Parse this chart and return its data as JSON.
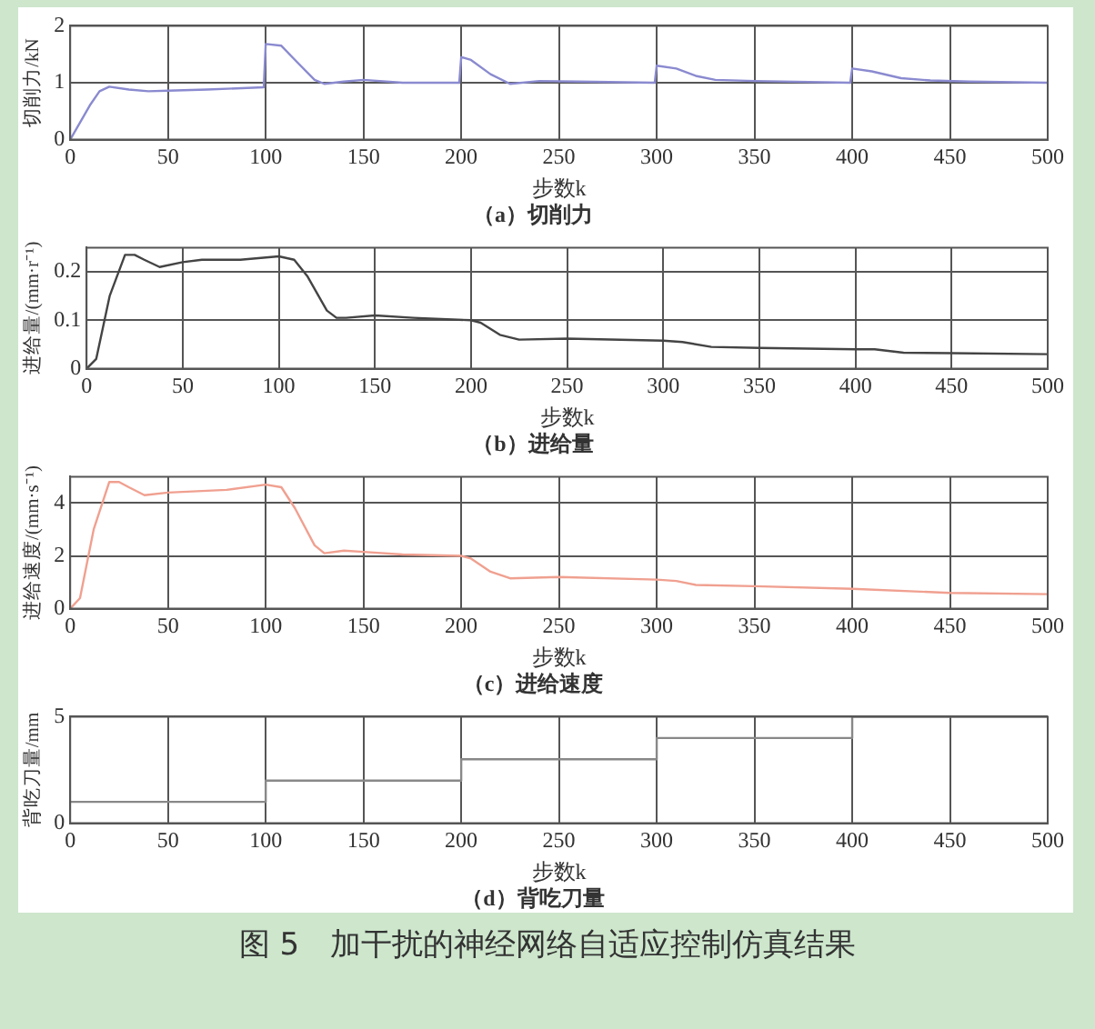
{
  "chart_data": [
    {
      "type": "line",
      "title": "（a）切削力",
      "xlabel": "步数k",
      "ylabel": "切削力/kN",
      "xlim": [
        0,
        500
      ],
      "xticks": [
        0,
        50,
        100,
        150,
        200,
        250,
        300,
        350,
        400,
        450,
        500
      ],
      "ylim": [
        0,
        2
      ],
      "yticks": [
        0,
        1,
        2
      ],
      "grid": true,
      "legend": false,
      "marker": "none",
      "line_style": "solid",
      "series": [
        {
          "color": "#8a8ad0",
          "x": [
            0,
            5,
            10,
            15,
            20,
            30,
            40,
            50,
            70,
            99,
            100,
            108,
            115,
            125,
            130,
            140,
            150,
            170,
            199,
            200,
            205,
            215,
            225,
            240,
            260,
            299,
            300,
            310,
            320,
            330,
            350,
            399,
            400,
            410,
            425,
            440,
            460,
            500
          ],
          "values": [
            0,
            0.3,
            0.6,
            0.85,
            0.93,
            0.88,
            0.85,
            0.86,
            0.88,
            0.92,
            1.68,
            1.65,
            1.4,
            1.05,
            0.98,
            1.02,
            1.05,
            1.0,
            1.0,
            1.45,
            1.4,
            1.15,
            0.98,
            1.03,
            1.02,
            1.0,
            1.3,
            1.25,
            1.12,
            1.05,
            1.03,
            1.0,
            1.25,
            1.2,
            1.08,
            1.04,
            1.02,
            1.0
          ]
        }
      ]
    },
    {
      "type": "line",
      "title": "（b）进给量",
      "xlabel": "步数k",
      "ylabel": "进给量/(mm·r⁻¹)",
      "xlim": [
        0,
        500
      ],
      "xticks": [
        0,
        50,
        100,
        150,
        200,
        250,
        300,
        350,
        400,
        450,
        500
      ],
      "ylim": [
        0,
        0.25
      ],
      "yticks": [
        0,
        0.1,
        0.2
      ],
      "grid": true,
      "legend": false,
      "marker": "none",
      "line_style": "solid",
      "series": [
        {
          "color": "#444444",
          "x": [
            0,
            5,
            12,
            20,
            25,
            30,
            38,
            50,
            60,
            80,
            100,
            108,
            115,
            125,
            130,
            135,
            150,
            170,
            200,
            205,
            215,
            225,
            250,
            300,
            310,
            325,
            350,
            400,
            410,
            425,
            450,
            500
          ],
          "values": [
            0,
            0.02,
            0.15,
            0.235,
            0.235,
            0.225,
            0.21,
            0.22,
            0.225,
            0.225,
            0.232,
            0.225,
            0.19,
            0.12,
            0.105,
            0.105,
            0.11,
            0.105,
            0.1,
            0.095,
            0.07,
            0.06,
            0.062,
            0.058,
            0.055,
            0.045,
            0.043,
            0.04,
            0.04,
            0.033,
            0.032,
            0.03
          ]
        }
      ]
    },
    {
      "type": "line",
      "title": "（c）进给速度",
      "xlabel": "步数k",
      "ylabel": "进给速度/(mm·s⁻¹)",
      "xlim": [
        0,
        500
      ],
      "xticks": [
        0,
        50,
        100,
        150,
        200,
        250,
        300,
        350,
        400,
        450,
        500
      ],
      "ylim": [
        0,
        5
      ],
      "yticks": [
        0,
        2,
        4
      ],
      "grid": true,
      "legend": false,
      "marker": "none",
      "line_style": "solid",
      "series": [
        {
          "color": "#f0a090",
          "x": [
            0,
            5,
            12,
            20,
            25,
            30,
            38,
            50,
            80,
            100,
            108,
            115,
            125,
            130,
            140,
            150,
            170,
            200,
            205,
            215,
            225,
            250,
            300,
            310,
            320,
            350,
            400,
            450,
            500
          ],
          "values": [
            0,
            0.4,
            3,
            4.8,
            4.8,
            4.6,
            4.3,
            4.4,
            4.5,
            4.7,
            4.6,
            3.8,
            2.4,
            2.1,
            2.2,
            2.15,
            2.05,
            2.0,
            1.9,
            1.4,
            1.15,
            1.2,
            1.1,
            1.05,
            0.9,
            0.85,
            0.75,
            0.6,
            0.55
          ]
        }
      ]
    },
    {
      "type": "step",
      "title": "（d）背吃刀量",
      "xlabel": "步数k",
      "ylabel": "背吃刀量/mm",
      "xlim": [
        0,
        500
      ],
      "xticks": [
        0,
        50,
        100,
        150,
        200,
        250,
        300,
        350,
        400,
        450,
        500
      ],
      "ylim": [
        0,
        5
      ],
      "yticks": [
        0,
        5
      ],
      "grid": true,
      "legend": false,
      "marker": "none",
      "line_style": "solid",
      "annotations": [
        "图 5　加干扰的神经网络自适应控制仿真结果"
      ],
      "series": [
        {
          "color": "#888888",
          "x": [
            0,
            100,
            200,
            300,
            400,
            500
          ],
          "values": [
            1,
            2,
            3,
            4,
            5,
            5
          ]
        }
      ]
    }
  ]
}
